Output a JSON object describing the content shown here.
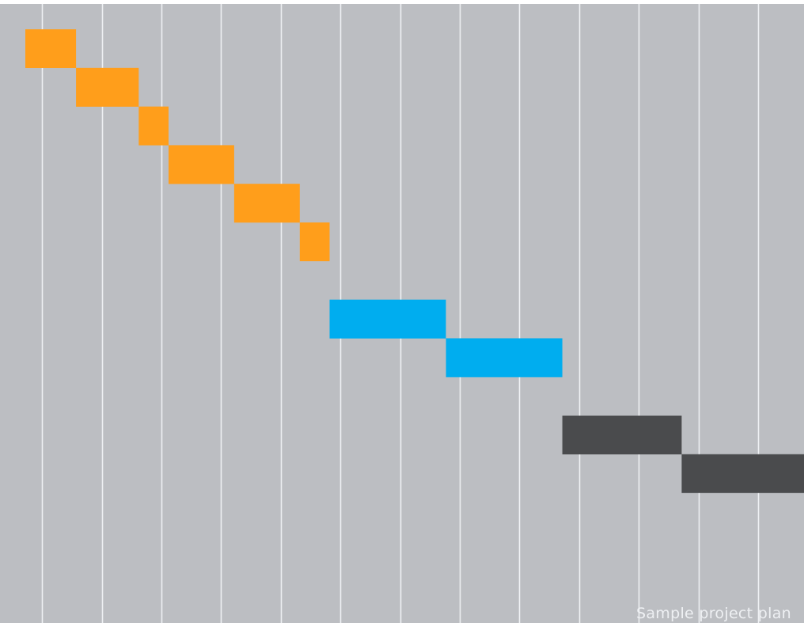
{
  "chart_data": {
    "type": "gantt",
    "title": "",
    "footer": "Sample project plan",
    "x_unit": "time period",
    "xlim": [
      0,
      13.3
    ],
    "grid_x": true,
    "tasks": [
      {
        "start": 0.0,
        "end": 0.85,
        "phase": 1
      },
      {
        "start": 0.85,
        "end": 1.9,
        "phase": 1
      },
      {
        "start": 1.9,
        "end": 2.4,
        "phase": 1
      },
      {
        "start": 2.4,
        "end": 3.5,
        "phase": 1
      },
      {
        "start": 3.5,
        "end": 4.6,
        "phase": 1
      },
      {
        "start": 4.6,
        "end": 5.1,
        "phase": 1
      },
      {
        "start": 5.1,
        "end": 7.05,
        "phase": 2
      },
      {
        "start": 7.05,
        "end": 9.0,
        "phase": 2
      },
      {
        "start": 9.0,
        "end": 11.0,
        "phase": 3
      },
      {
        "start": 11.0,
        "end": 13.3,
        "phase": 3
      }
    ],
    "phase_colors": {
      "1": "#ff9e1b",
      "2": "#00adef",
      "3": "#4a4b4d"
    },
    "background_color": "#bcbec2",
    "grid_color": "#eef0f3"
  }
}
